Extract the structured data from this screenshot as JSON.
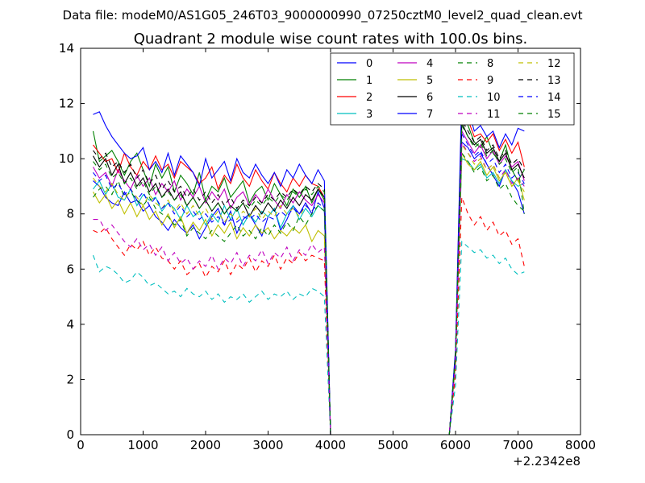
{
  "figure": {
    "suptitle": "Data file: modeM0/AS1G05_246T03_9000000990_07250cztM0_level2_quad_clean.evt"
  },
  "chart_data": {
    "type": "line",
    "title": "Quadrant 2 module wise count rates with 100.0s bins.",
    "xlabel": "",
    "ylabel": "",
    "x_offset_label": "+2.2342e8",
    "xlim": [
      0,
      8000
    ],
    "ylim": [
      0,
      14
    ],
    "x_ticks": [
      0,
      1000,
      2000,
      3000,
      4000,
      5000,
      6000,
      7000,
      8000
    ],
    "y_ticks": [
      0,
      2,
      4,
      6,
      8,
      10,
      12,
      14
    ],
    "grid": false,
    "legend_position": "top-right",
    "x": [
      200,
      300,
      400,
      500,
      600,
      700,
      800,
      900,
      1000,
      1100,
      1200,
      1300,
      1400,
      1500,
      1600,
      1700,
      1800,
      1900,
      2000,
      2100,
      2200,
      2300,
      2400,
      2500,
      2600,
      2700,
      2800,
      2900,
      3000,
      3100,
      3200,
      3300,
      3400,
      3500,
      3600,
      3700,
      3800,
      3900,
      4000,
      4100,
      4200,
      4300,
      4400,
      4500,
      4600,
      4700,
      4800,
      4900,
      5000,
      5100,
      5200,
      5300,
      5400,
      5500,
      5600,
      5700,
      5800,
      5900,
      6000,
      6100,
      6200,
      6300,
      6400,
      6500,
      6600,
      6700,
      6800,
      6900,
      7000,
      7100
    ],
    "series": [
      {
        "name": "0",
        "color": "#0000ff",
        "dash": "solid",
        "values": [
          9.2,
          9.0,
          8.6,
          8.4,
          8.3,
          8.8,
          8.4,
          8.5,
          8.1,
          8.3,
          7.9,
          7.7,
          7.4,
          7.8,
          7.5,
          7.3,
          7.6,
          7.1,
          7.5,
          7.9,
          8.2,
          7.6,
          8.1,
          7.3,
          7.8,
          8.0,
          7.6,
          7.2,
          7.9,
          8.2,
          7.4,
          7.8,
          8.3,
          8.0,
          8.4,
          8.0,
          8.8,
          8.2,
          0,
          0,
          0,
          0,
          0,
          0,
          0,
          0,
          0,
          0,
          0,
          0,
          0,
          0,
          0,
          0,
          0,
          0,
          0,
          0,
          2.8,
          10.6,
          10.4,
          10.0,
          10.2,
          9.8,
          9.4,
          9.0,
          9.6,
          9.2,
          8.8,
          8.0
        ]
      },
      {
        "name": "1",
        "color": "#008000",
        "dash": "solid",
        "values": [
          11.0,
          9.9,
          10.1,
          10.3,
          9.9,
          9.4,
          9.9,
          10.2,
          9.6,
          9.0,
          9.8,
          9.3,
          9.7,
          8.8,
          9.4,
          9.1,
          8.7,
          9.5,
          8.5,
          9.0,
          8.8,
          9.3,
          8.6,
          8.9,
          9.2,
          8.4,
          8.8,
          9.0,
          8.5,
          9.1,
          8.7,
          8.3,
          8.9,
          8.6,
          9.0,
          8.4,
          8.9,
          8.5,
          0,
          0,
          0,
          0,
          0,
          0,
          0,
          0,
          0,
          0,
          0,
          0,
          0,
          0,
          0,
          0,
          0,
          0,
          0,
          0,
          2.9,
          11.8,
          11.2,
          10.6,
          10.4,
          10.8,
          10.2,
          9.9,
          10.5,
          9.6,
          9.2,
          9.6
        ]
      },
      {
        "name": "2",
        "color": "#ff0000",
        "dash": "solid",
        "values": [
          10.5,
          10.2,
          9.9,
          10.0,
          9.5,
          10.2,
          9.7,
          9.4,
          9.9,
          9.6,
          10.1,
          9.6,
          9.8,
          9.3,
          9.9,
          9.7,
          9.5,
          9.1,
          9.3,
          9.7,
          8.9,
          9.4,
          9.1,
          9.8,
          9.3,
          9.0,
          9.6,
          9.2,
          8.9,
          9.5,
          9.1,
          8.8,
          9.3,
          9.0,
          9.4,
          9.1,
          9.0,
          8.6,
          0,
          0,
          0,
          0,
          0,
          0,
          0,
          0,
          0,
          0,
          0,
          0,
          0,
          0,
          0,
          0,
          0,
          0,
          0,
          0,
          3.0,
          12.0,
          11.4,
          10.8,
          10.9,
          10.6,
          10.9,
          10.3,
          10.7,
          10.2,
          10.6,
          9.7
        ]
      },
      {
        "name": "3",
        "color": "#00bfbf",
        "dash": "solid",
        "values": [
          8.9,
          9.2,
          8.7,
          9.1,
          8.6,
          8.5,
          8.9,
          8.3,
          8.7,
          8.5,
          8.6,
          8.1,
          8.4,
          8.2,
          7.8,
          8.3,
          7.9,
          8.1,
          7.6,
          8.0,
          7.7,
          8.3,
          7.8,
          8.2,
          7.6,
          8.0,
          7.7,
          8.1,
          7.9,
          8.2,
          7.5,
          8.0,
          8.3,
          7.8,
          8.2,
          7.9,
          8.3,
          8.1,
          0,
          0,
          0,
          0,
          0,
          0,
          0,
          0,
          0,
          0,
          0,
          0,
          0,
          0,
          0,
          0,
          0,
          0,
          0,
          0,
          2.7,
          10.0,
          9.9,
          9.6,
          9.8,
          9.3,
          9.5,
          9.1,
          9.6,
          9.2,
          9.0,
          9.1
        ]
      },
      {
        "name": "4",
        "color": "#bf00bf",
        "dash": "solid",
        "values": [
          9.7,
          9.3,
          9.5,
          9.0,
          9.6,
          9.2,
          8.9,
          9.4,
          9.0,
          9.3,
          8.7,
          9.1,
          8.8,
          9.2,
          8.5,
          8.9,
          8.6,
          9.0,
          8.4,
          8.8,
          8.5,
          8.9,
          8.2,
          8.6,
          8.8,
          8.3,
          8.7,
          8.4,
          8.9,
          8.5,
          8.2,
          8.7,
          8.4,
          8.8,
          8.5,
          8.3,
          8.7,
          8.4,
          0,
          0,
          0,
          0,
          0,
          0,
          0,
          0,
          0,
          0,
          0,
          0,
          0,
          0,
          0,
          0,
          0,
          0,
          0,
          0,
          2.8,
          11.0,
          10.6,
          10.2,
          10.5,
          10.0,
          10.3,
          9.8,
          10.1,
          9.7,
          9.9,
          9.2
        ]
      },
      {
        "name": "5",
        "color": "#bfbf00",
        "dash": "solid",
        "values": [
          8.8,
          8.4,
          8.7,
          8.2,
          8.5,
          8.0,
          8.4,
          7.9,
          8.3,
          7.8,
          8.1,
          7.6,
          8.0,
          7.5,
          7.9,
          7.3,
          7.7,
          7.4,
          7.8,
          7.2,
          7.6,
          7.3,
          7.7,
          7.1,
          7.5,
          7.2,
          7.6,
          7.3,
          7.5,
          7.1,
          7.4,
          7.2,
          7.5,
          7.3,
          7.6,
          7.0,
          7.4,
          7.2,
          0,
          0,
          0,
          0,
          0,
          0,
          0,
          0,
          0,
          0,
          0,
          0,
          0,
          0,
          0,
          0,
          0,
          0,
          0,
          0,
          2.6,
          10.2,
          9.8,
          9.6,
          9.9,
          9.4,
          9.7,
          9.2,
          9.5,
          9.0,
          9.3,
          8.5
        ]
      },
      {
        "name": "6",
        "color": "#000000",
        "dash": "solid",
        "values": [
          10.1,
          9.7,
          10.0,
          9.4,
          9.8,
          9.1,
          9.5,
          9.0,
          9.3,
          8.8,
          9.1,
          8.6,
          8.9,
          8.5,
          8.8,
          8.3,
          8.6,
          8.2,
          8.5,
          8.1,
          8.4,
          8.0,
          8.3,
          8.1,
          8.4,
          7.9,
          8.3,
          8.0,
          8.4,
          8.1,
          8.5,
          8.2,
          8.6,
          8.3,
          8.7,
          8.5,
          8.9,
          8.6,
          0,
          0,
          0,
          0,
          0,
          0,
          0,
          0,
          0,
          0,
          0,
          0,
          0,
          0,
          0,
          0,
          0,
          0,
          0,
          0,
          2.9,
          11.3,
          10.8,
          10.5,
          10.7,
          10.2,
          10.4,
          9.9,
          10.2,
          9.6,
          9.8,
          9.3
        ]
      },
      {
        "name": "7",
        "color": "#0000ff",
        "dash": "solid",
        "values": [
          11.6,
          11.7,
          11.2,
          10.8,
          10.5,
          10.2,
          10.0,
          10.1,
          10.4,
          9.6,
          9.9,
          9.5,
          10.2,
          9.4,
          10.1,
          9.8,
          9.5,
          9.0,
          10.0,
          9.3,
          9.6,
          9.9,
          9.2,
          10.0,
          9.5,
          9.3,
          9.8,
          9.4,
          9.1,
          9.5,
          9.0,
          9.6,
          9.3,
          9.8,
          9.4,
          9.1,
          9.6,
          9.2,
          0,
          0,
          0,
          0,
          0,
          0,
          0,
          0,
          0,
          0,
          0,
          0,
          0,
          0,
          0,
          0,
          0,
          0,
          0,
          0,
          3.1,
          12.4,
          11.8,
          11.0,
          11.2,
          10.8,
          11.0,
          10.4,
          10.9,
          10.5,
          11.1,
          11.0
        ]
      },
      {
        "name": "8",
        "color": "#008000",
        "dash": "dashed",
        "values": [
          8.6,
          8.9,
          9.0,
          8.7,
          9.2,
          8.6,
          8.8,
          8.5,
          8.3,
          8.6,
          8.2,
          8.0,
          7.9,
          7.6,
          7.8,
          7.2,
          7.5,
          7.3,
          7.1,
          7.4,
          7.2,
          7.0,
          7.3,
          7.6,
          7.2,
          7.4,
          7.1,
          7.5,
          7.2,
          7.6,
          7.3,
          7.7,
          7.4,
          7.9,
          7.6,
          8.0,
          8.3,
          8.1,
          0,
          0,
          0,
          0,
          0,
          0,
          0,
          0,
          0,
          0,
          0,
          0,
          0,
          0,
          0,
          0,
          0,
          0,
          0,
          0,
          2.7,
          10.2,
          9.9,
          9.5,
          9.7,
          9.2,
          9.4,
          8.9,
          9.1,
          8.6,
          8.3,
          8.1
        ]
      },
      {
        "name": "9",
        "color": "#ff0000",
        "dash": "dashed",
        "values": [
          7.4,
          7.3,
          7.5,
          7.1,
          6.8,
          6.5,
          6.9,
          6.7,
          7.0,
          6.5,
          6.8,
          6.4,
          6.3,
          6.0,
          6.3,
          5.8,
          6.0,
          6.2,
          5.7,
          6.1,
          5.9,
          6.3,
          5.8,
          6.2,
          6.0,
          6.4,
          5.9,
          6.3,
          6.1,
          6.5,
          6.0,
          6.4,
          6.2,
          6.6,
          6.3,
          6.5,
          6.4,
          6.3,
          0,
          0,
          0,
          0,
          0,
          0,
          0,
          0,
          0,
          0,
          0,
          0,
          0,
          0,
          0,
          0,
          0,
          0,
          0,
          0,
          2.2,
          8.6,
          8.0,
          7.6,
          7.9,
          7.4,
          7.7,
          7.2,
          7.4,
          6.9,
          7.1,
          6.1
        ]
      },
      {
        "name": "10",
        "color": "#00bfbf",
        "dash": "dashed",
        "values": [
          6.5,
          5.9,
          6.1,
          6.0,
          5.8,
          5.5,
          5.6,
          5.9,
          5.7,
          5.4,
          5.5,
          5.3,
          5.1,
          5.2,
          5.0,
          5.3,
          5.1,
          5.0,
          5.2,
          4.9,
          5.1,
          4.8,
          5.0,
          4.9,
          5.1,
          4.8,
          5.0,
          5.2,
          4.9,
          5.1,
          5.0,
          5.2,
          4.9,
          5.1,
          5.0,
          5.3,
          5.2,
          5.0,
          0,
          0,
          0,
          0,
          0,
          0,
          0,
          0,
          0,
          0,
          0,
          0,
          0,
          0,
          0,
          0,
          0,
          0,
          0,
          0,
          1.8,
          7.0,
          6.8,
          6.6,
          6.7,
          6.4,
          6.5,
          6.2,
          6.4,
          6.0,
          5.8,
          5.9
        ]
      },
      {
        "name": "11",
        "color": "#bf00bf",
        "dash": "dashed",
        "values": [
          7.8,
          7.8,
          7.4,
          7.6,
          7.3,
          7.0,
          6.8,
          7.1,
          6.7,
          6.9,
          6.5,
          6.8,
          6.3,
          6.6,
          6.2,
          6.4,
          6.0,
          6.3,
          6.1,
          6.5,
          6.0,
          6.4,
          6.2,
          6.6,
          6.1,
          6.5,
          6.3,
          6.7,
          6.2,
          6.6,
          6.4,
          6.8,
          6.3,
          6.7,
          6.5,
          6.9,
          6.6,
          6.8,
          0,
          0,
          0,
          0,
          0,
          0,
          0,
          0,
          0,
          0,
          0,
          0,
          0,
          0,
          0,
          0,
          0,
          0,
          0,
          0,
          2.6,
          10.6,
          10.2,
          9.9,
          10.1,
          9.6,
          9.8,
          9.3,
          9.6,
          9.1,
          9.3,
          9.0
        ]
      },
      {
        "name": "12",
        "color": "#bfbf00",
        "dash": "dashed",
        "values": [
          9.3,
          9.0,
          8.8,
          9.1,
          8.7,
          8.5,
          8.9,
          8.6,
          8.3,
          8.7,
          8.4,
          8.2,
          8.5,
          8.1,
          8.4,
          8.0,
          8.3,
          7.9,
          8.2,
          7.8,
          8.1,
          7.7,
          8.0,
          7.8,
          8.1,
          7.9,
          8.2,
          7.8,
          8.1,
          7.9,
          8.3,
          8.0,
          8.2,
          7.9,
          8.3,
          8.1,
          8.4,
          8.2,
          0,
          0,
          0,
          0,
          0,
          0,
          0,
          0,
          0,
          0,
          0,
          0,
          0,
          0,
          0,
          0,
          0,
          0,
          0,
          0,
          2.8,
          10.5,
          10.2,
          9.8,
          10.0,
          9.6,
          9.8,
          9.3,
          9.5,
          9.0,
          9.2,
          8.8
        ]
      },
      {
        "name": "13",
        "color": "#000000",
        "dash": "dashed",
        "values": [
          10.3,
          10.0,
          10.2,
          9.7,
          9.9,
          9.5,
          9.8,
          9.3,
          9.6,
          9.1,
          9.4,
          8.9,
          9.2,
          8.8,
          9.0,
          8.6,
          8.9,
          8.5,
          8.8,
          8.4,
          8.7,
          8.3,
          8.6,
          8.2,
          8.5,
          8.3,
          8.6,
          8.4,
          8.7,
          8.5,
          8.8,
          8.6,
          8.9,
          8.7,
          9.0,
          8.8,
          9.1,
          8.9,
          0,
          0,
          0,
          0,
          0,
          0,
          0,
          0,
          0,
          0,
          0,
          0,
          0,
          0,
          0,
          0,
          0,
          0,
          0,
          0,
          3.0,
          11.4,
          11.0,
          10.6,
          10.8,
          10.3,
          10.5,
          10.0,
          10.3,
          9.8,
          10.0,
          9.6
        ]
      },
      {
        "name": "14",
        "color": "#0000ff",
        "dash": "dashed",
        "values": [
          9.5,
          9.2,
          9.4,
          8.9,
          9.1,
          8.7,
          8.9,
          8.5,
          8.8,
          8.3,
          8.6,
          8.2,
          8.4,
          8.0,
          8.3,
          7.9,
          8.1,
          7.8,
          8.0,
          7.7,
          7.9,
          7.6,
          7.8,
          7.7,
          7.9,
          7.8,
          8.0,
          7.7,
          7.9,
          7.8,
          8.1,
          7.9,
          8.2,
          8.0,
          8.3,
          8.1,
          8.4,
          8.2,
          0,
          0,
          0,
          0,
          0,
          0,
          0,
          0,
          0,
          0,
          0,
          0,
          0,
          0,
          0,
          0,
          0,
          0,
          0,
          0,
          2.9,
          10.9,
          10.5,
          10.1,
          10.3,
          9.8,
          10.0,
          9.5,
          9.8,
          9.3,
          9.5,
          9.1
        ]
      },
      {
        "name": "15",
        "color": "#008000",
        "dash": "dashed",
        "values": [
          9.9,
          9.6,
          9.8,
          9.3,
          9.5,
          9.1,
          9.3,
          8.9,
          9.2,
          8.7,
          9.0,
          8.6,
          8.8,
          8.5,
          8.7,
          8.3,
          8.6,
          8.2,
          8.5,
          8.1,
          8.4,
          8.0,
          8.3,
          8.1,
          8.4,
          8.2,
          8.5,
          8.3,
          8.6,
          8.4,
          8.7,
          8.5,
          8.8,
          8.6,
          8.9,
          8.7,
          9.0,
          8.8,
          0,
          0,
          0,
          0,
          0,
          0,
          0,
          0,
          0,
          0,
          0,
          0,
          0,
          0,
          0,
          0,
          0,
          0,
          0,
          0,
          2.9,
          11.2,
          10.8,
          10.4,
          10.6,
          10.1,
          10.3,
          9.8,
          10.0,
          9.5,
          9.7,
          8.0
        ]
      }
    ]
  }
}
